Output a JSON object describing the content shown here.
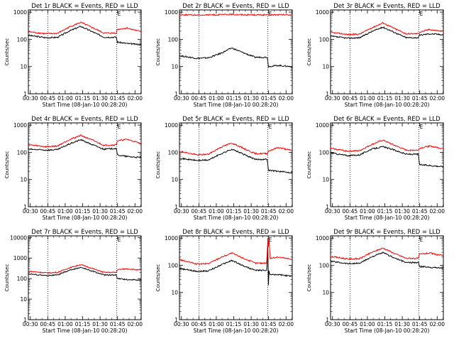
{
  "figure": {
    "background": "#ffffff",
    "colors": {
      "events": "#000000",
      "lld": "#ff0000",
      "frame": "#000000"
    }
  },
  "chart_data": [
    {
      "type": "line",
      "title": "Det 1r BLACK = Events, RED = LLD",
      "xlabel": "Start Time (08-Jan-10 00:28:20)",
      "ylabel": "Counts/sec",
      "x_ticks": [
        "00:30",
        "00:45",
        "01:00",
        "01:15",
        "01:30",
        "01:45",
        "02:00"
      ],
      "y_ticks": [
        "1",
        "10",
        "100",
        "1000"
      ],
      "ylim": [
        1,
        1200
      ],
      "yscale": "log",
      "xlim_minutes": [
        0,
        97
      ],
      "vlines_minutes": [
        16.7,
        76
      ],
      "marker_label": "E",
      "series": [
        {
          "name": "BLACK = Events",
          "color": "#000000",
          "x": [
            0,
            15,
            25,
            35,
            45,
            55,
            65,
            75.9,
            76.1,
            85,
            95
          ],
          "y": [
            140,
            115,
            118,
            200,
            300,
            190,
            120,
            120,
            80,
            70,
            65
          ]
        },
        {
          "name": "RED = LLD",
          "color": "#ff0000",
          "x": [
            0,
            15,
            25,
            35,
            45,
            55,
            65,
            75.9,
            76.1,
            85,
            95
          ],
          "y": [
            190,
            160,
            165,
            280,
            420,
            270,
            170,
            170,
            230,
            260,
            200
          ]
        }
      ]
    },
    {
      "type": "line",
      "title": "Det 2r BLACK = Events, RED = LLD",
      "xlabel": "Start Time (08-Jan-10 00:28:20)",
      "ylabel": "Counts/sec",
      "x_ticks": [
        "00:30",
        "00:45",
        "01:00",
        "01:15",
        "01:30",
        "01:45",
        "02:00"
      ],
      "y_ticks": [
        "1",
        "10",
        "100",
        "1000"
      ],
      "ylim": [
        1,
        1200
      ],
      "yscale": "log",
      "xlim_minutes": [
        0,
        97
      ],
      "vlines_minutes": [
        16.7,
        76
      ],
      "marker_label": "E",
      "series": [
        {
          "name": "BLACK = Events",
          "color": "#000000",
          "x": [
            0,
            15,
            25,
            35,
            45,
            55,
            65,
            75.9,
            76.1,
            85,
            95
          ],
          "y": [
            25,
            20,
            21,
            30,
            48,
            32,
            22,
            22,
            10,
            11,
            10
          ]
        },
        {
          "name": "RED = LLD",
          "color": "#ff0000",
          "x": [
            0,
            15,
            25,
            35,
            45,
            55,
            65,
            75.9,
            76.1,
            85,
            95
          ],
          "y": [
            800,
            780,
            790,
            800,
            820,
            800,
            790,
            790,
            780,
            800,
            790
          ]
        }
      ]
    },
    {
      "type": "line",
      "title": "Det 3r BLACK = Events, RED = LLD",
      "xlabel": "Start Time (08-Jan-10 00:28:20)",
      "ylabel": "Counts/sec",
      "x_ticks": [
        "00:30",
        "00:45",
        "01:00",
        "01:15",
        "01:30",
        "01:45",
        "02:00"
      ],
      "y_ticks": [
        "1",
        "10",
        "100",
        "1000"
      ],
      "ylim": [
        1,
        1200
      ],
      "yscale": "log",
      "xlim_minutes": [
        0,
        97
      ],
      "vlines_minutes": [
        16.7,
        76
      ],
      "marker_label": "E",
      "series": [
        {
          "name": "BLACK = Events",
          "color": "#000000",
          "x": [
            0,
            15,
            25,
            35,
            45,
            55,
            65,
            75.9,
            76.1,
            85,
            95
          ],
          "y": [
            130,
            110,
            115,
            190,
            280,
            180,
            115,
            115,
            140,
            160,
            150
          ]
        },
        {
          "name": "RED = LLD",
          "color": "#ff0000",
          "x": [
            0,
            15,
            25,
            35,
            45,
            55,
            65,
            75.9,
            76.1,
            85,
            95
          ],
          "y": [
            180,
            150,
            155,
            260,
            400,
            250,
            160,
            160,
            180,
            230,
            200
          ]
        }
      ]
    },
    {
      "type": "line",
      "title": "Det 4r BLACK = Events, RED = LLD",
      "xlabel": "Start Time (08-Jan-10 00:28:20)",
      "ylabel": "Counts/sec",
      "x_ticks": [
        "00:30",
        "00:45",
        "01:00",
        "01:15",
        "01:30",
        "01:45",
        "02:00"
      ],
      "y_ticks": [
        "1",
        "10",
        "100",
        "1000"
      ],
      "ylim": [
        1,
        1200
      ],
      "yscale": "log",
      "xlim_minutes": [
        0,
        97
      ],
      "vlines_minutes": [
        16.7,
        76
      ],
      "marker_label": "E",
      "series": [
        {
          "name": "BLACK = Events",
          "color": "#000000",
          "x": [
            0,
            15,
            25,
            35,
            45,
            55,
            65,
            75.9,
            76.1,
            85,
            95
          ],
          "y": [
            130,
            120,
            125,
            200,
            290,
            190,
            130,
            140,
            80,
            70,
            65
          ]
        },
        {
          "name": "RED = LLD",
          "color": "#ff0000",
          "x": [
            0,
            15,
            25,
            35,
            45,
            55,
            65,
            75.9,
            76.1,
            85,
            95
          ],
          "y": [
            190,
            160,
            170,
            290,
            420,
            280,
            180,
            190,
            260,
            300,
            220
          ]
        }
      ]
    },
    {
      "type": "line",
      "title": "Det 5r BLACK = Events, RED = LLD",
      "xlabel": "Start Time (08-Jan-10 00:28:20)",
      "ylabel": "Counts/sec",
      "x_ticks": [
        "00:30",
        "00:45",
        "01:00",
        "01:15",
        "01:30",
        "01:45",
        "02:00"
      ],
      "y_ticks": [
        "1",
        "10",
        "100",
        "1000"
      ],
      "ylim": [
        1,
        1200
      ],
      "yscale": "log",
      "xlim_minutes": [
        0,
        97
      ],
      "vlines_minutes": [
        16.7,
        76
      ],
      "marker_label": "E",
      "series": [
        {
          "name": "BLACK = Events",
          "color": "#000000",
          "x": [
            0,
            15,
            25,
            35,
            45,
            55,
            65,
            75.9,
            76.1,
            85,
            95
          ],
          "y": [
            60,
            50,
            52,
            85,
            130,
            85,
            55,
            55,
            22,
            20,
            18
          ]
        },
        {
          "name": "RED = LLD",
          "color": "#ff0000",
          "x": [
            0,
            15,
            25,
            35,
            45,
            55,
            65,
            75.9,
            76.1,
            85,
            95
          ],
          "y": [
            110,
            80,
            85,
            150,
            220,
            140,
            90,
            90,
            110,
            150,
            120
          ]
        }
      ]
    },
    {
      "type": "line",
      "title": "Det 6r BLACK = Events, RED = LLD",
      "xlabel": "Start Time (08-Jan-10 00:28:20)",
      "ylabel": "Counts/sec",
      "x_ticks": [
        "00:30",
        "00:45",
        "01:00",
        "01:15",
        "01:30",
        "01:45",
        "02:00"
      ],
      "y_ticks": [
        "1",
        "10",
        "100",
        "1000"
      ],
      "ylim": [
        1,
        1200
      ],
      "yscale": "log",
      "xlim_minutes": [
        0,
        97
      ],
      "vlines_minutes": [
        16.7,
        76
      ],
      "marker_label": "E",
      "series": [
        {
          "name": "BLACK = Events",
          "color": "#000000",
          "x": [
            0,
            15,
            25,
            35,
            45,
            55,
            65,
            75.9,
            76.1,
            85,
            95
          ],
          "y": [
            95,
            75,
            80,
            130,
            160,
            120,
            85,
            85,
            35,
            33,
            30
          ]
        },
        {
          "name": "RED = LLD",
          "color": "#ff0000",
          "x": [
            0,
            15,
            25,
            35,
            45,
            55,
            65,
            75.9,
            76.1,
            85,
            95
          ],
          "y": [
            140,
            110,
            115,
            190,
            280,
            180,
            120,
            120,
            140,
            170,
            140
          ]
        }
      ]
    },
    {
      "type": "line",
      "title": "Det 7r BLACK = Events, RED = LLD",
      "xlabel": "Start Time (08-Jan-10 00:28:20)",
      "ylabel": "Counts/sec",
      "x_ticks": [
        "00:30",
        "00:45",
        "01:00",
        "01:15",
        "01:30",
        "01:45",
        "02:00"
      ],
      "y_ticks": [
        "1",
        "10",
        "100",
        "1000",
        "10000"
      ],
      "ylim": [
        1,
        12000
      ],
      "yscale": "log",
      "xlim_minutes": [
        0,
        97
      ],
      "vlines_minutes": [
        16.7,
        76
      ],
      "marker_label": "E",
      "series": [
        {
          "name": "BLACK = Events",
          "color": "#000000",
          "x": [
            0,
            15,
            25,
            35,
            45,
            55,
            65,
            75.9,
            76.1,
            85,
            95
          ],
          "y": [
            170,
            140,
            150,
            250,
            350,
            230,
            150,
            150,
            100,
            90,
            85
          ]
        },
        {
          "name": "RED = LLD",
          "color": "#ff0000",
          "x": [
            0,
            15,
            25,
            35,
            45,
            55,
            65,
            75.9,
            76.1,
            85,
            95
          ],
          "y": [
            230,
            190,
            200,
            330,
            480,
            310,
            200,
            200,
            270,
            300,
            260
          ]
        }
      ]
    },
    {
      "type": "line",
      "title": "Det 8r BLACK = Events, RED = LLD",
      "xlabel": "Start Time (08-Jan-10 00:28:20)",
      "ylabel": "Counts/sec",
      "x_ticks": [
        "00:30",
        "00:45",
        "01:00",
        "01:15",
        "01:30",
        "01:45",
        "02:00"
      ],
      "y_ticks": [
        "1",
        "10",
        "100",
        "1000"
      ],
      "ylim": [
        1,
        1200
      ],
      "yscale": "log",
      "xlim_minutes": [
        0,
        97
      ],
      "vlines_minutes": [
        16.7,
        76
      ],
      "marker_label": "E",
      "series": [
        {
          "name": "BLACK = Events",
          "color": "#000000",
          "x": [
            0,
            15,
            25,
            35,
            45,
            55,
            65,
            75,
            76,
            76.5,
            77,
            78,
            85,
            95
          ],
          "y": [
            75,
            60,
            62,
            100,
            150,
            95,
            65,
            65,
            500,
            18,
            60,
            45,
            45,
            40
          ]
        },
        {
          "name": "RED = LLD",
          "color": "#ff0000",
          "x": [
            0,
            15,
            25,
            35,
            45,
            55,
            65,
            75,
            76,
            76.5,
            77,
            78,
            85,
            95
          ],
          "y": [
            160,
            110,
            115,
            190,
            280,
            180,
            120,
            120,
            1000,
            500,
            1000,
            180,
            200,
            170
          ]
        }
      ]
    },
    {
      "type": "line",
      "title": "Det 9r BLACK = Events, RED = LLD",
      "xlabel": "Start Time (08-Jan-10 00:28:20)",
      "ylabel": "Counts/sec",
      "x_ticks": [
        "00:30",
        "00:45",
        "01:00",
        "01:15",
        "01:30",
        "01:45",
        "02:00"
      ],
      "y_ticks": [
        "1",
        "10",
        "100",
        "1000"
      ],
      "ylim": [
        1,
        1200
      ],
      "yscale": "log",
      "xlim_minutes": [
        0,
        97
      ],
      "vlines_minutes": [
        16.7,
        76
      ],
      "marker_label": "E",
      "series": [
        {
          "name": "BLACK = Events",
          "color": "#000000",
          "x": [
            0,
            15,
            25,
            35,
            45,
            55,
            65,
            75.9,
            76.1,
            85,
            95
          ],
          "y": [
            140,
            115,
            118,
            200,
            290,
            185,
            125,
            125,
            90,
            85,
            80
          ]
        },
        {
          "name": "RED = LLD",
          "color": "#ff0000",
          "x": [
            0,
            15,
            25,
            35,
            45,
            55,
            65,
            75.9,
            76.1,
            85,
            95
          ],
          "y": [
            210,
            170,
            175,
            290,
            430,
            270,
            180,
            180,
            250,
            280,
            230
          ]
        }
      ]
    }
  ]
}
